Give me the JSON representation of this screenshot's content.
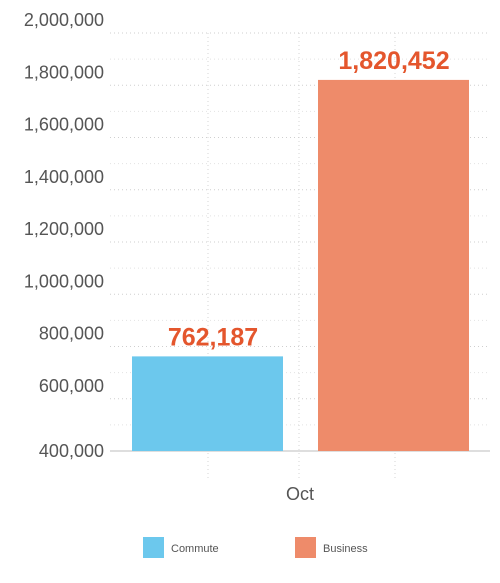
{
  "chart_data": {
    "type": "bar",
    "categories": [
      "Oct"
    ],
    "series": [
      {
        "name": "Commute",
        "values": [
          762187
        ],
        "value_label": "762,187",
        "color": "#6CC8ED"
      },
      {
        "name": "Business",
        "values": [
          1820452
        ],
        "value_label": "1,820,452",
        "color": "#EE8B6A"
      }
    ],
    "data_label_color": "#E4562D",
    "ylim": [
      400000,
      2000000
    ],
    "yticks": [
      400000,
      600000,
      800000,
      1000000,
      1200000,
      1400000,
      1600000,
      1800000,
      2000000
    ],
    "ytick_labels": [
      "400,000",
      "600,000",
      "800,000",
      "1,000,000",
      "1,200,000",
      "1,400,000",
      "1,600,000",
      "1,800,000",
      "2,000,000"
    ],
    "grid": true,
    "legend_position": "bottom",
    "title": "",
    "xlabel": "",
    "ylabel": ""
  }
}
